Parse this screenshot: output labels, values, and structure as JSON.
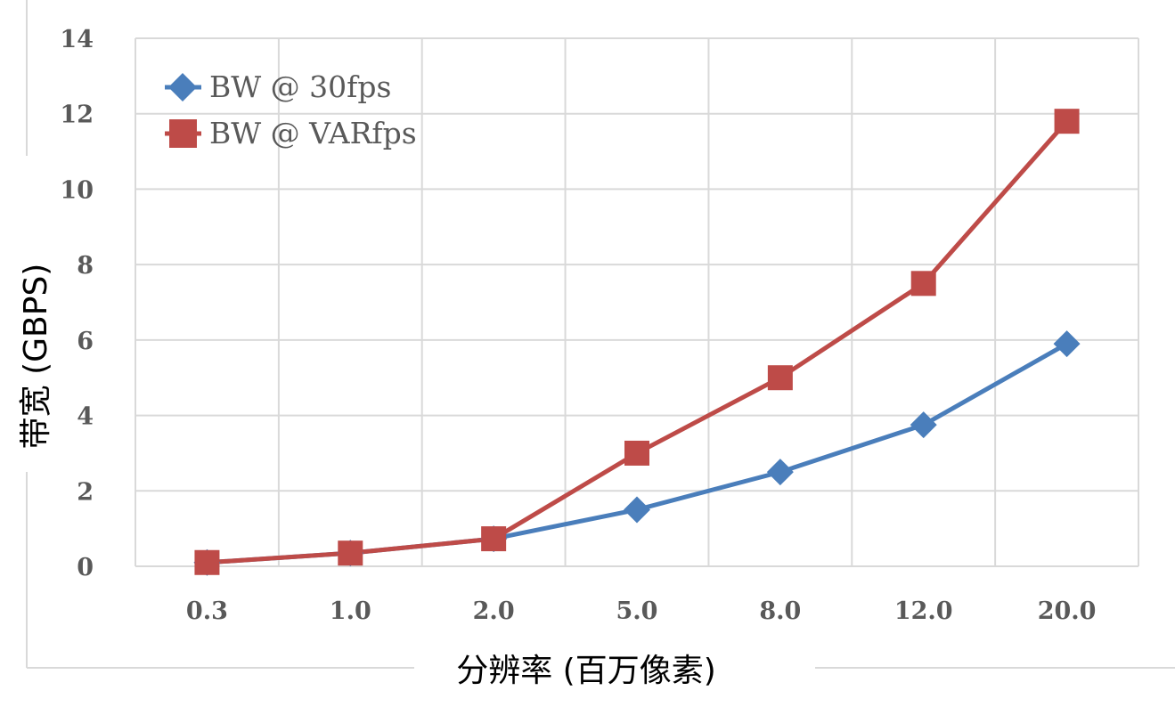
{
  "chart_data": {
    "type": "line",
    "categories": [
      "0.3",
      "1.0",
      "2.0",
      "5.0",
      "8.0",
      "12.0",
      "20.0"
    ],
    "series": [
      {
        "name": "BW @ 30fps",
        "values": [
          0.1,
          0.35,
          0.73,
          1.5,
          2.5,
          3.75,
          5.9
        ],
        "color": "#4a7ebb",
        "marker": "diamond"
      },
      {
        "name": "BW @ VARfps",
        "values": [
          0.1,
          0.35,
          0.73,
          3.0,
          5.0,
          7.5,
          11.8
        ],
        "color": "#be4b48",
        "marker": "square"
      }
    ],
    "xlabel": "分辨率 (百万像素)",
    "ylabel": "带宽 (GBPS)",
    "ylim": [
      0,
      14
    ],
    "yticks": [
      0,
      2,
      4,
      6,
      8,
      10,
      12,
      14
    ],
    "grid": true,
    "legend_position": "top-left"
  }
}
